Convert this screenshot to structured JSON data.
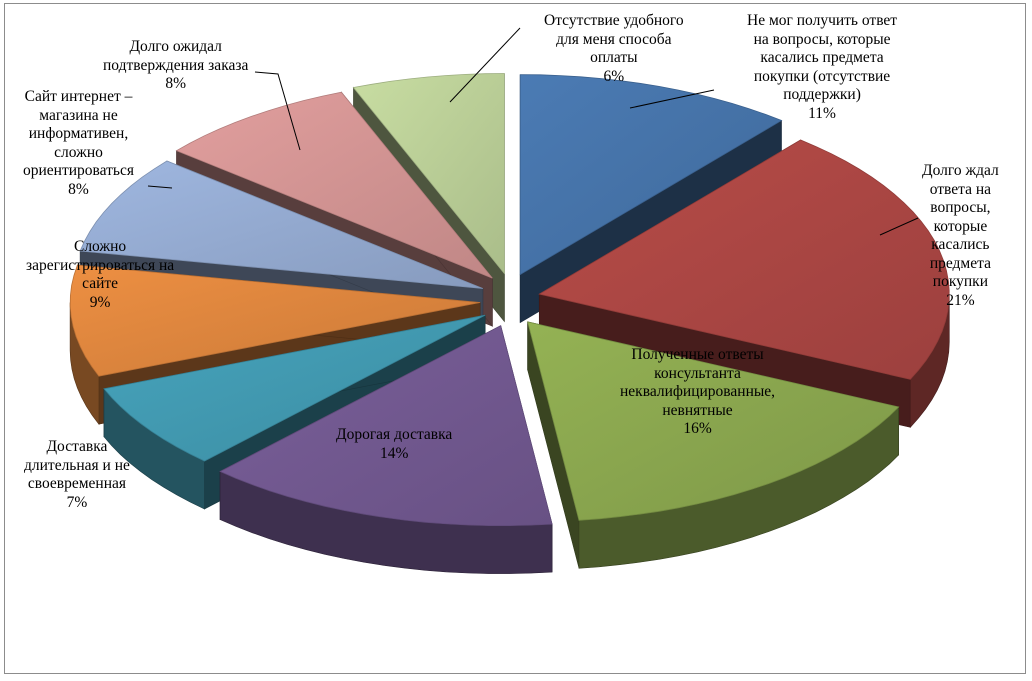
{
  "chart_data": {
    "type": "pie",
    "title": "",
    "slices": [
      {
        "label": "Не мог получить ответ\nна вопросы, которые\nкасались предмета\nпокупки (отсутствие\nподдержки)",
        "value": 11,
        "value_label": "11%",
        "color": "#4572a7"
      },
      {
        "label": "Долго ждал\nответа на\nвопросы,\nкоторые\nкасались\nпредмета\nпокупки",
        "value": 21,
        "value_label": "21%",
        "color": "#aa4643"
      },
      {
        "label": "Полученные ответы\nконсультанта\nнеквалифицированные,\nневнятные",
        "value": 16,
        "value_label": "16%",
        "color": "#89a54e"
      },
      {
        "label": "Дорогая доставка",
        "value": 14,
        "value_label": "14%",
        "color": "#71588f"
      },
      {
        "label": "Доставка\nдлительная и не\nсвоевременная",
        "value": 7,
        "value_label": "7%",
        "color": "#4198af"
      },
      {
        "label": "Сложно\nзарегистрироваться на\nсайте",
        "value": 9,
        "value_label": "9%",
        "color": "#db843d"
      },
      {
        "label": "Сайт интернет –\nмагазина не\nинформативен,\nсложно\nориентироваться",
        "value": 8,
        "value_label": "8%",
        "color": "#93a9cf"
      },
      {
        "label": "Долго ожидал\nподтверждения заказа",
        "value": 8,
        "value_label": "8%",
        "color": "#d19392"
      },
      {
        "label": "Отсутствие удобного\nдля меня способа\nоплаты",
        "value": 6,
        "value_label": "6%",
        "color": "#b9cd96"
      }
    ],
    "exploded": true,
    "style": "3d",
    "legend": "none"
  }
}
